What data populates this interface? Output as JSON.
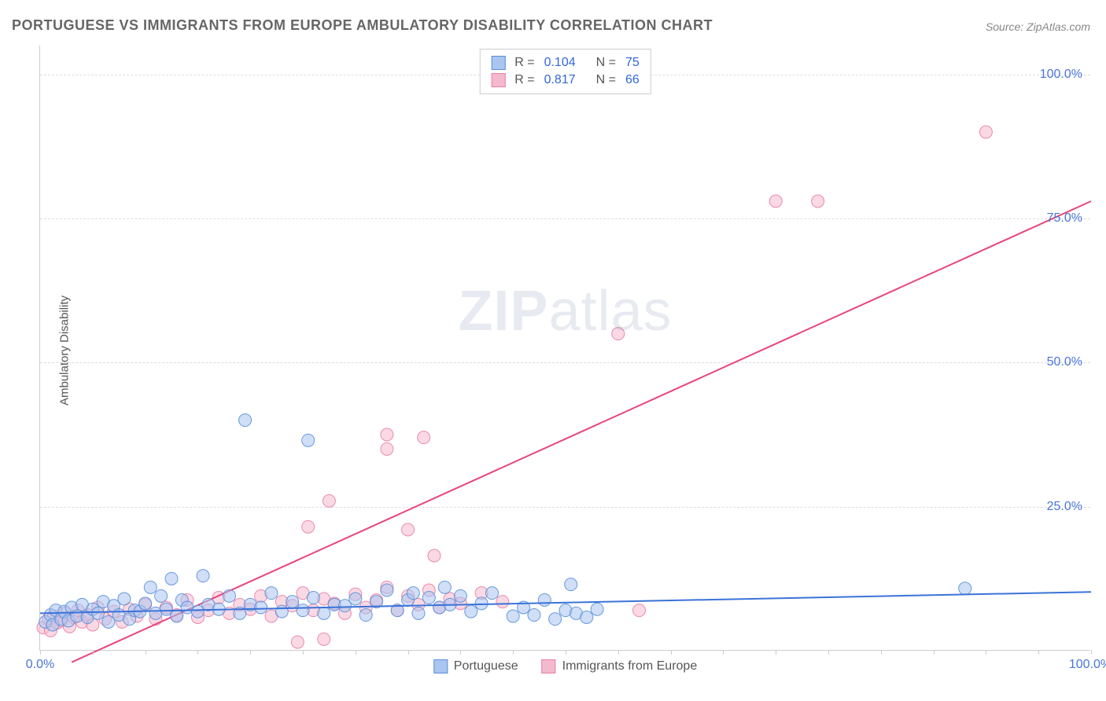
{
  "title": "PORTUGUESE VS IMMIGRANTS FROM EUROPE AMBULATORY DISABILITY CORRELATION CHART",
  "source_label": "Source: ZipAtlas.com",
  "ylabel": "Ambulatory Disability",
  "watermark": {
    "zip": "ZIP",
    "atlas": "atlas"
  },
  "chart": {
    "type": "scatter",
    "xlim": [
      0,
      100
    ],
    "ylim": [
      0,
      105
    ],
    "x_tick_label_min": "0.0%",
    "x_tick_label_max": "100.0%",
    "x_tick_positions": [
      0,
      5,
      10,
      15,
      20,
      25,
      30,
      35,
      40,
      45,
      50,
      55,
      60,
      65,
      70,
      75,
      80,
      85,
      90,
      95,
      100
    ],
    "y_ticks": [
      {
        "value": 25,
        "label": "25.0%"
      },
      {
        "value": 50,
        "label": "50.0%"
      },
      {
        "value": 75,
        "label": "75.0%"
      },
      {
        "value": 100,
        "label": "100.0%"
      }
    ],
    "background_color": "#ffffff",
    "grid_color": "#dddddd",
    "axis_color": "#cccccc",
    "tick_label_color": "#4a74d8",
    "marker_radius": 8,
    "marker_opacity": 0.55,
    "marker_stroke_opacity": 0.9,
    "line_width": 2
  },
  "series": {
    "portuguese": {
      "label": "Portuguese",
      "color_fill": "#a9c5f0",
      "color_stroke": "#5a8fd8",
      "line_color": "#3b72d8",
      "R": "0.104",
      "N": "75",
      "trend": {
        "x1": 0,
        "y1": 6.5,
        "x2": 100,
        "y2": 10.2
      },
      "points": [
        [
          0.5,
          5.0
        ],
        [
          1.0,
          6.2
        ],
        [
          1.2,
          4.5
        ],
        [
          1.5,
          7.0
        ],
        [
          2.0,
          5.5
        ],
        [
          2.3,
          6.8
        ],
        [
          2.7,
          5.2
        ],
        [
          3.0,
          7.5
        ],
        [
          3.5,
          6.0
        ],
        [
          4.0,
          8.0
        ],
        [
          4.5,
          5.8
        ],
        [
          5.0,
          7.2
        ],
        [
          5.5,
          6.5
        ],
        [
          6.0,
          8.5
        ],
        [
          6.5,
          5.0
        ],
        [
          7.0,
          7.8
        ],
        [
          7.5,
          6.2
        ],
        [
          8.0,
          9.0
        ],
        [
          8.5,
          5.5
        ],
        [
          9.0,
          7.0
        ],
        [
          9.5,
          6.8
        ],
        [
          10.0,
          8.2
        ],
        [
          10.5,
          11.0
        ],
        [
          11.0,
          6.5
        ],
        [
          11.5,
          9.5
        ],
        [
          12.0,
          7.2
        ],
        [
          12.5,
          12.5
        ],
        [
          13.0,
          6.0
        ],
        [
          13.5,
          8.8
        ],
        [
          14.0,
          7.5
        ],
        [
          15.0,
          6.8
        ],
        [
          15.5,
          13.0
        ],
        [
          16.0,
          8.0
        ],
        [
          17.0,
          7.2
        ],
        [
          18.0,
          9.5
        ],
        [
          19.0,
          6.5
        ],
        [
          19.5,
          40.0
        ],
        [
          20.0,
          8.0
        ],
        [
          21.0,
          7.5
        ],
        [
          22.0,
          10.0
        ],
        [
          23.0,
          6.8
        ],
        [
          24.0,
          8.5
        ],
        [
          25.0,
          7.0
        ],
        [
          25.5,
          36.5
        ],
        [
          26.0,
          9.2
        ],
        [
          27.0,
          6.5
        ],
        [
          28.0,
          8.0
        ],
        [
          29.0,
          7.8
        ],
        [
          30.0,
          9.0
        ],
        [
          31.0,
          6.2
        ],
        [
          32.0,
          8.5
        ],
        [
          33.0,
          10.5
        ],
        [
          34.0,
          7.0
        ],
        [
          35.0,
          8.8
        ],
        [
          35.5,
          10.0
        ],
        [
          36.0,
          6.5
        ],
        [
          37.0,
          9.2
        ],
        [
          38.0,
          7.5
        ],
        [
          38.5,
          11.0
        ],
        [
          39.0,
          8.0
        ],
        [
          40.0,
          9.5
        ],
        [
          41.0,
          6.8
        ],
        [
          42.0,
          8.2
        ],
        [
          43.0,
          10.0
        ],
        [
          45.0,
          6.0
        ],
        [
          46.0,
          7.5
        ],
        [
          47.0,
          6.2
        ],
        [
          48.0,
          8.8
        ],
        [
          49.0,
          5.5
        ],
        [
          50.0,
          7.0
        ],
        [
          50.5,
          11.5
        ],
        [
          51.0,
          6.5
        ],
        [
          52.0,
          5.8
        ],
        [
          53.0,
          7.2
        ],
        [
          88.0,
          10.8
        ]
      ]
    },
    "immigrants": {
      "label": "Immigrants from Europe",
      "color_fill": "#f5b9cd",
      "color_stroke": "#e87fa6",
      "line_color": "#e8447c",
      "R": "0.817",
      "N": "66",
      "trend": {
        "x1": 3,
        "y1": -2,
        "x2": 100,
        "y2": 78
      },
      "points": [
        [
          0.3,
          4.0
        ],
        [
          0.8,
          5.5
        ],
        [
          1.0,
          3.5
        ],
        [
          1.3,
          6.0
        ],
        [
          1.6,
          4.8
        ],
        [
          2.0,
          5.2
        ],
        [
          2.4,
          6.5
        ],
        [
          2.8,
          4.2
        ],
        [
          3.2,
          5.8
        ],
        [
          3.6,
          7.0
        ],
        [
          4.0,
          5.0
        ],
        [
          4.5,
          6.2
        ],
        [
          5.0,
          4.5
        ],
        [
          5.5,
          7.5
        ],
        [
          6.2,
          5.5
        ],
        [
          7.0,
          6.8
        ],
        [
          7.8,
          5.0
        ],
        [
          8.5,
          7.2
        ],
        [
          9.2,
          6.0
        ],
        [
          10.0,
          8.0
        ],
        [
          11.0,
          5.5
        ],
        [
          12.0,
          7.5
        ],
        [
          13.0,
          6.2
        ],
        [
          14.0,
          8.8
        ],
        [
          15.0,
          5.8
        ],
        [
          16.0,
          7.0
        ],
        [
          17.0,
          9.2
        ],
        [
          18.0,
          6.5
        ],
        [
          19.0,
          8.0
        ],
        [
          20.0,
          7.2
        ],
        [
          21.0,
          9.5
        ],
        [
          22.0,
          6.0
        ],
        [
          23.0,
          8.5
        ],
        [
          24.0,
          7.8
        ],
        [
          24.5,
          1.5
        ],
        [
          25.0,
          10.0
        ],
        [
          25.5,
          21.5
        ],
        [
          26.0,
          7.0
        ],
        [
          27.0,
          9.0
        ],
        [
          27.0,
          2.0
        ],
        [
          27.5,
          26.0
        ],
        [
          28.0,
          8.2
        ],
        [
          29.0,
          6.5
        ],
        [
          30.0,
          9.8
        ],
        [
          31.0,
          7.5
        ],
        [
          32.0,
          8.8
        ],
        [
          33.0,
          11.0
        ],
        [
          33.0,
          37.5
        ],
        [
          33.0,
          35.0
        ],
        [
          34.0,
          7.0
        ],
        [
          35.0,
          9.5
        ],
        [
          35.0,
          21.0
        ],
        [
          36.0,
          8.0
        ],
        [
          36.5,
          37.0
        ],
        [
          37.0,
          10.5
        ],
        [
          37.5,
          16.5
        ],
        [
          38.0,
          7.5
        ],
        [
          39.0,
          9.0
        ],
        [
          40.0,
          8.2
        ],
        [
          42.0,
          10.0
        ],
        [
          44.0,
          8.5
        ],
        [
          55.0,
          55.0
        ],
        [
          57.0,
          7.0
        ],
        [
          70.0,
          78.0
        ],
        [
          74.0,
          78.0
        ],
        [
          90.0,
          90.0
        ]
      ]
    }
  },
  "legend_labels": {
    "R": "R =",
    "N": "N ="
  }
}
